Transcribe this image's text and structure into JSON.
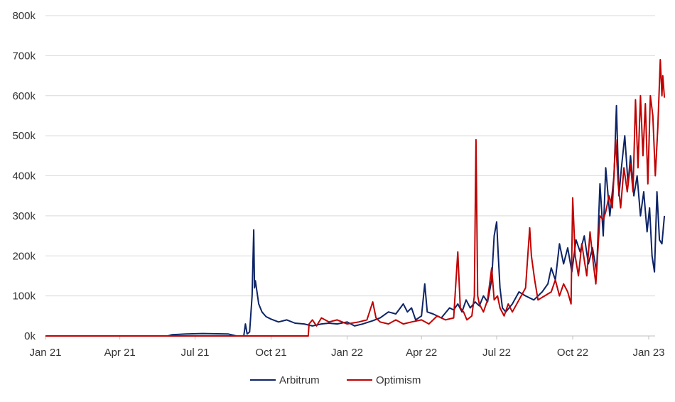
{
  "chart_data": {
    "type": "line",
    "title": "",
    "xlabel": "",
    "ylabel": "",
    "x_ticks": [
      "Jan 21",
      "Apr 21",
      "Jul 21",
      "Oct 21",
      "Jan 22",
      "Apr 22",
      "Jul 22",
      "Oct 22",
      "Jan 23"
    ],
    "y_ticks": [
      "0k",
      "100k",
      "200k",
      "300k",
      "400k",
      "500k",
      "600k",
      "700k",
      "800k"
    ],
    "ylim": [
      0,
      800000
    ],
    "xlim": [
      "2021-01-01",
      "2023-01-20"
    ],
    "grid": "horizontal",
    "legend_position": "bottom",
    "series": [
      {
        "name": "Arbitrum",
        "color": "#0d2466",
        "points": [
          [
            "2021-01-01",
            0
          ],
          [
            "2021-05-29",
            0
          ],
          [
            "2021-06-03",
            3000
          ],
          [
            "2021-06-20",
            5000
          ],
          [
            "2021-07-10",
            6000
          ],
          [
            "2021-08-10",
            5000
          ],
          [
            "2021-08-20",
            0
          ],
          [
            "2021-08-29",
            0
          ],
          [
            "2021-08-31",
            30000
          ],
          [
            "2021-09-02",
            5000
          ],
          [
            "2021-09-05",
            10000
          ],
          [
            "2021-09-08",
            100000
          ],
          [
            "2021-09-10",
            265000
          ],
          [
            "2021-09-11",
            120000
          ],
          [
            "2021-09-12",
            138000
          ],
          [
            "2021-09-14",
            110000
          ],
          [
            "2021-09-16",
            80000
          ],
          [
            "2021-09-20",
            60000
          ],
          [
            "2021-09-25",
            48000
          ],
          [
            "2021-10-01",
            42000
          ],
          [
            "2021-10-10",
            35000
          ],
          [
            "2021-10-20",
            40000
          ],
          [
            "2021-10-30",
            32000
          ],
          [
            "2021-11-10",
            30000
          ],
          [
            "2021-11-20",
            25000
          ],
          [
            "2021-12-01",
            30000
          ],
          [
            "2021-12-10",
            32000
          ],
          [
            "2021-12-20",
            30000
          ],
          [
            "2022-01-01",
            35000
          ],
          [
            "2022-01-10",
            25000
          ],
          [
            "2022-01-20",
            30000
          ],
          [
            "2022-02-01",
            38000
          ],
          [
            "2022-02-10",
            45000
          ],
          [
            "2022-02-20",
            60000
          ],
          [
            "2022-03-01",
            55000
          ],
          [
            "2022-03-10",
            80000
          ],
          [
            "2022-03-15",
            60000
          ],
          [
            "2022-03-20",
            70000
          ],
          [
            "2022-03-25",
            40000
          ],
          [
            "2022-04-01",
            50000
          ],
          [
            "2022-04-05",
            130000
          ],
          [
            "2022-04-08",
            60000
          ],
          [
            "2022-04-15",
            55000
          ],
          [
            "2022-04-25",
            45000
          ],
          [
            "2022-05-05",
            70000
          ],
          [
            "2022-05-10",
            65000
          ],
          [
            "2022-05-15",
            80000
          ],
          [
            "2022-05-20",
            60000
          ],
          [
            "2022-05-25",
            90000
          ],
          [
            "2022-05-30",
            70000
          ],
          [
            "2022-06-05",
            85000
          ],
          [
            "2022-06-10",
            75000
          ],
          [
            "2022-06-15",
            100000
          ],
          [
            "2022-06-20",
            85000
          ],
          [
            "2022-06-25",
            140000
          ],
          [
            "2022-06-28",
            250000
          ],
          [
            "2022-07-01",
            285000
          ],
          [
            "2022-07-03",
            200000
          ],
          [
            "2022-07-05",
            120000
          ],
          [
            "2022-07-08",
            70000
          ],
          [
            "2022-07-12",
            60000
          ],
          [
            "2022-07-20",
            80000
          ],
          [
            "2022-07-28",
            110000
          ],
          [
            "2022-08-05",
            100000
          ],
          [
            "2022-08-15",
            90000
          ],
          [
            "2022-08-25",
            110000
          ],
          [
            "2022-09-01",
            130000
          ],
          [
            "2022-09-05",
            170000
          ],
          [
            "2022-09-10",
            140000
          ],
          [
            "2022-09-15",
            230000
          ],
          [
            "2022-09-20",
            180000
          ],
          [
            "2022-09-25",
            220000
          ],
          [
            "2022-09-30",
            160000
          ],
          [
            "2022-10-05",
            240000
          ],
          [
            "2022-10-10",
            210000
          ],
          [
            "2022-10-15",
            250000
          ],
          [
            "2022-10-20",
            180000
          ],
          [
            "2022-10-25",
            220000
          ],
          [
            "2022-10-30",
            160000
          ],
          [
            "2022-11-03",
            380000
          ],
          [
            "2022-11-07",
            250000
          ],
          [
            "2022-11-10",
            420000
          ],
          [
            "2022-11-15",
            300000
          ],
          [
            "2022-11-20",
            400000
          ],
          [
            "2022-11-23",
            575000
          ],
          [
            "2022-11-26",
            350000
          ],
          [
            "2022-11-29",
            420000
          ],
          [
            "2022-12-03",
            500000
          ],
          [
            "2022-12-07",
            380000
          ],
          [
            "2022-12-10",
            450000
          ],
          [
            "2022-12-14",
            350000
          ],
          [
            "2022-12-18",
            400000
          ],
          [
            "2022-12-22",
            300000
          ],
          [
            "2022-12-26",
            360000
          ],
          [
            "2022-12-30",
            260000
          ],
          [
            "2023-01-02",
            320000
          ],
          [
            "2023-01-05",
            200000
          ],
          [
            "2023-01-08",
            160000
          ],
          [
            "2023-01-11",
            360000
          ],
          [
            "2023-01-14",
            240000
          ],
          [
            "2023-01-17",
            230000
          ],
          [
            "2023-01-20",
            300000
          ]
        ]
      },
      {
        "name": "Optimism",
        "color": "#c00000",
        "points": [
          [
            "2021-01-01",
            0
          ],
          [
            "2021-11-15",
            0
          ],
          [
            "2021-11-16",
            30000
          ],
          [
            "2021-11-20",
            40000
          ],
          [
            "2021-11-25",
            25000
          ],
          [
            "2021-12-01",
            45000
          ],
          [
            "2021-12-10",
            35000
          ],
          [
            "2021-12-20",
            40000
          ],
          [
            "2022-01-01",
            30000
          ],
          [
            "2022-01-15",
            35000
          ],
          [
            "2022-01-25",
            40000
          ],
          [
            "2022-02-01",
            85000
          ],
          [
            "2022-02-05",
            45000
          ],
          [
            "2022-02-10",
            35000
          ],
          [
            "2022-02-20",
            30000
          ],
          [
            "2022-03-01",
            40000
          ],
          [
            "2022-03-10",
            30000
          ],
          [
            "2022-03-20",
            35000
          ],
          [
            "2022-04-01",
            40000
          ],
          [
            "2022-04-10",
            30000
          ],
          [
            "2022-04-20",
            50000
          ],
          [
            "2022-04-30",
            40000
          ],
          [
            "2022-05-10",
            45000
          ],
          [
            "2022-05-15",
            210000
          ],
          [
            "2022-05-18",
            70000
          ],
          [
            "2022-05-22",
            60000
          ],
          [
            "2022-05-26",
            40000
          ],
          [
            "2022-06-01",
            50000
          ],
          [
            "2022-06-04",
            100000
          ],
          [
            "2022-06-06",
            490000
          ],
          [
            "2022-06-08",
            100000
          ],
          [
            "2022-06-10",
            80000
          ],
          [
            "2022-06-15",
            60000
          ],
          [
            "2022-06-20",
            90000
          ],
          [
            "2022-06-25",
            170000
          ],
          [
            "2022-06-28",
            90000
          ],
          [
            "2022-07-02",
            100000
          ],
          [
            "2022-07-05",
            70000
          ],
          [
            "2022-07-10",
            50000
          ],
          [
            "2022-07-15",
            80000
          ],
          [
            "2022-07-20",
            60000
          ],
          [
            "2022-07-28",
            90000
          ],
          [
            "2022-08-05",
            120000
          ],
          [
            "2022-08-10",
            270000
          ],
          [
            "2022-08-12",
            200000
          ],
          [
            "2022-08-16",
            140000
          ],
          [
            "2022-08-20",
            90000
          ],
          [
            "2022-08-28",
            100000
          ],
          [
            "2022-09-05",
            110000
          ],
          [
            "2022-09-10",
            140000
          ],
          [
            "2022-09-15",
            100000
          ],
          [
            "2022-09-20",
            130000
          ],
          [
            "2022-09-25",
            110000
          ],
          [
            "2022-09-29",
            80000
          ],
          [
            "2022-10-01",
            345000
          ],
          [
            "2022-10-04",
            200000
          ],
          [
            "2022-10-08",
            150000
          ],
          [
            "2022-10-12",
            230000
          ],
          [
            "2022-10-18",
            150000
          ],
          [
            "2022-10-22",
            260000
          ],
          [
            "2022-10-26",
            180000
          ],
          [
            "2022-10-29",
            130000
          ],
          [
            "2022-11-03",
            300000
          ],
          [
            "2022-11-07",
            290000
          ],
          [
            "2022-11-10",
            310000
          ],
          [
            "2022-11-14",
            350000
          ],
          [
            "2022-11-18",
            320000
          ],
          [
            "2022-11-22",
            490000
          ],
          [
            "2022-11-25",
            380000
          ],
          [
            "2022-11-28",
            320000
          ],
          [
            "2022-12-02",
            420000
          ],
          [
            "2022-12-06",
            360000
          ],
          [
            "2022-12-10",
            430000
          ],
          [
            "2022-12-13",
            360000
          ],
          [
            "2022-12-16",
            590000
          ],
          [
            "2022-12-19",
            420000
          ],
          [
            "2022-12-22",
            600000
          ],
          [
            "2022-12-25",
            450000
          ],
          [
            "2022-12-28",
            580000
          ],
          [
            "2022-12-31",
            380000
          ],
          [
            "2023-01-03",
            600000
          ],
          [
            "2023-01-06",
            550000
          ],
          [
            "2023-01-09",
            400000
          ],
          [
            "2023-01-12",
            520000
          ],
          [
            "2023-01-15",
            690000
          ],
          [
            "2023-01-17",
            600000
          ],
          [
            "2023-01-18",
            650000
          ],
          [
            "2023-01-20",
            595000
          ]
        ]
      }
    ]
  }
}
